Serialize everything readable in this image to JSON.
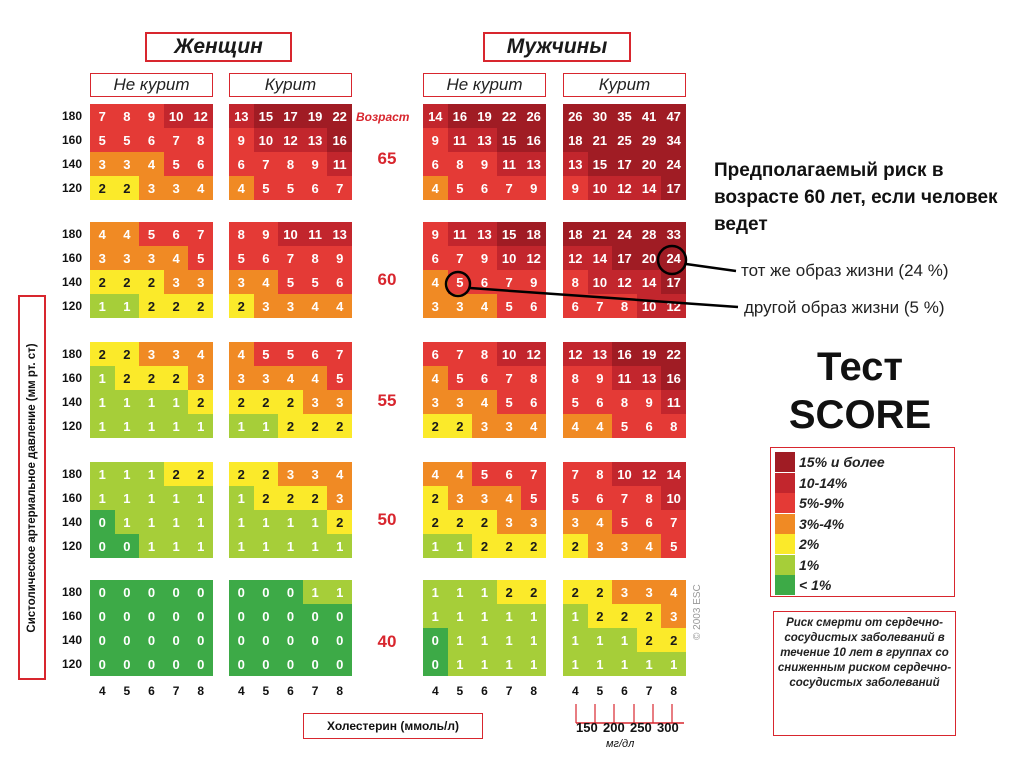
{
  "headers": {
    "women": "Женщин",
    "men": "Мужчины"
  },
  "subheaders": {
    "nonsmoker": "Не курит",
    "smoker": "Курит"
  },
  "age_header": "Возраст",
  "ages": [
    "65",
    "60",
    "55",
    "50",
    "40"
  ],
  "bp_labels": [
    "180",
    "160",
    "140",
    "120"
  ],
  "chol_labels": [
    "4",
    "5",
    "6",
    "7",
    "8"
  ],
  "y_axis_label": "Систолическое артериальное давление (мм рт. ст)",
  "x_axis_label": "Холестерин (ммоль/л)",
  "mgdl_ticks": [
    "150",
    "200",
    "250",
    "300"
  ],
  "mgdl_unit": "мг/дл",
  "copyright": "© 2003 ESC",
  "annotation": {
    "title": "Предполагаемый риск в возрасте 60 лет, если человек ведет",
    "same": "тот же образ жизни (24 %)",
    "other": "другой образ жизни (5 %)"
  },
  "score_title": {
    "line1": "Тест",
    "line2": "SCORE"
  },
  "legend": [
    {
      "label": "15% и более",
      "color": "#a01c24"
    },
    {
      "label": "10-14%",
      "color": "#c2262d"
    },
    {
      "label": "5%-9%",
      "color": "#e43a36"
    },
    {
      "label": "3%-4%",
      "color": "#f08a24"
    },
    {
      "label": "2%",
      "color": "#fbea2a"
    },
    {
      "label": "1%",
      "color": "#a6ce39"
    },
    {
      "label": "< 1%",
      "color": "#3daa47"
    }
  ],
  "note": "Риск смерти от сердечно-сосудистых заболеваний в течение 10 лет в группах со сниженным риском сердечно-сосудистых заболеваний",
  "chart_data": {
    "type": "table",
    "title": "SCORE",
    "row_label": "Систолическое артериальное давление (мм рт. ст)",
    "col_label": "Холестерин (ммоль/л)",
    "rows": [
      "180",
      "160",
      "140",
      "120"
    ],
    "cols": [
      "4",
      "5",
      "6",
      "7",
      "8"
    ],
    "groups": [
      {
        "sex": "Женщин",
        "smoking": "Не курит",
        "ages": {
          "65": [
            [
              7,
              8,
              9,
              10,
              12
            ],
            [
              5,
              5,
              6,
              7,
              8
            ],
            [
              3,
              3,
              4,
              5,
              6
            ],
            [
              2,
              2,
              3,
              3,
              4
            ]
          ],
          "60": [
            [
              4,
              4,
              5,
              6,
              7
            ],
            [
              3,
              3,
              3,
              4,
              5
            ],
            [
              2,
              2,
              2,
              3,
              3
            ],
            [
              1,
              1,
              2,
              2,
              2
            ]
          ],
          "55": [
            [
              2,
              2,
              3,
              3,
              4
            ],
            [
              1,
              2,
              2,
              2,
              3
            ],
            [
              1,
              1,
              1,
              1,
              2
            ],
            [
              1,
              1,
              1,
              1,
              1
            ]
          ],
          "50": [
            [
              1,
              1,
              1,
              2,
              2
            ],
            [
              1,
              1,
              1,
              1,
              1
            ],
            [
              0,
              1,
              1,
              1,
              1
            ],
            [
              0,
              0,
              1,
              1,
              1
            ]
          ],
          "40": [
            [
              0,
              0,
              0,
              0,
              0
            ],
            [
              0,
              0,
              0,
              0,
              0
            ],
            [
              0,
              0,
              0,
              0,
              0
            ],
            [
              0,
              0,
              0,
              0,
              0
            ]
          ]
        }
      },
      {
        "sex": "Женщин",
        "smoking": "Курит",
        "ages": {
          "65": [
            [
              13,
              15,
              17,
              19,
              22
            ],
            [
              9,
              10,
              12,
              13,
              16
            ],
            [
              6,
              7,
              8,
              9,
              11
            ],
            [
              4,
              5,
              5,
              6,
              7
            ]
          ],
          "60": [
            [
              8,
              9,
              10,
              11,
              13
            ],
            [
              5,
              6,
              7,
              8,
              9
            ],
            [
              3,
              4,
              5,
              5,
              6
            ],
            [
              2,
              3,
              3,
              4,
              4
            ]
          ],
          "55": [
            [
              4,
              5,
              5,
              6,
              7
            ],
            [
              3,
              3,
              4,
              4,
              5
            ],
            [
              2,
              2,
              2,
              3,
              3
            ],
            [
              1,
              1,
              2,
              2,
              2
            ]
          ],
          "50": [
            [
              2,
              2,
              3,
              3,
              4
            ],
            [
              1,
              2,
              2,
              2,
              3
            ],
            [
              1,
              1,
              1,
              1,
              2
            ],
            [
              1,
              1,
              1,
              1,
              1
            ]
          ],
          "40": [
            [
              0,
              0,
              0,
              1,
              1
            ],
            [
              0,
              0,
              0,
              0,
              0
            ],
            [
              0,
              0,
              0,
              0,
              0
            ],
            [
              0,
              0,
              0,
              0,
              0
            ]
          ]
        }
      },
      {
        "sex": "Мужчины",
        "smoking": "Не курит",
        "ages": {
          "65": [
            [
              14,
              16,
              19,
              22,
              26
            ],
            [
              9,
              11,
              13,
              15,
              16
            ],
            [
              6,
              8,
              9,
              11,
              13
            ],
            [
              4,
              5,
              6,
              7,
              9
            ]
          ],
          "60": [
            [
              9,
              11,
              13,
              15,
              18
            ],
            [
              6,
              7,
              9,
              10,
              12
            ],
            [
              4,
              5,
              6,
              7,
              9
            ],
            [
              3,
              3,
              4,
              5,
              6
            ]
          ],
          "55": [
            [
              6,
              7,
              8,
              10,
              12
            ],
            [
              4,
              5,
              6,
              7,
              8
            ],
            [
              3,
              3,
              4,
              5,
              6
            ],
            [
              2,
              2,
              3,
              3,
              4
            ]
          ],
          "50": [
            [
              4,
              4,
              5,
              6,
              7
            ],
            [
              2,
              3,
              3,
              4,
              5
            ],
            [
              2,
              2,
              2,
              3,
              3
            ],
            [
              1,
              1,
              2,
              2,
              2
            ]
          ],
          "40": [
            [
              1,
              1,
              1,
              2,
              2
            ],
            [
              1,
              1,
              1,
              1,
              1
            ],
            [
              0,
              1,
              1,
              1,
              1
            ],
            [
              0,
              1,
              1,
              1,
              1
            ]
          ]
        }
      },
      {
        "sex": "Мужчины",
        "smoking": "Курит",
        "ages": {
          "65": [
            [
              26,
              30,
              35,
              41,
              47
            ],
            [
              18,
              21,
              25,
              29,
              34
            ],
            [
              13,
              15,
              17,
              20,
              24
            ],
            [
              9,
              10,
              12,
              14,
              17
            ]
          ],
          "60": [
            [
              18,
              21,
              24,
              28,
              33
            ],
            [
              12,
              14,
              17,
              20,
              24
            ],
            [
              8,
              10,
              12,
              14,
              17
            ],
            [
              6,
              7,
              8,
              10,
              12
            ]
          ],
          "55": [
            [
              12,
              13,
              16,
              19,
              22
            ],
            [
              8,
              9,
              11,
              13,
              16
            ],
            [
              5,
              6,
              8,
              9,
              11
            ],
            [
              4,
              4,
              5,
              6,
              8
            ]
          ],
          "50": [
            [
              7,
              8,
              10,
              12,
              14
            ],
            [
              5,
              6,
              7,
              8,
              10
            ],
            [
              3,
              4,
              5,
              6,
              7
            ],
            [
              2,
              3,
              3,
              4,
              5
            ]
          ],
          "40": [
            [
              2,
              2,
              3,
              3,
              4
            ],
            [
              1,
              2,
              2,
              2,
              3
            ],
            [
              1,
              1,
              1,
              2,
              2
            ],
            [
              1,
              1,
              1,
              1,
              1
            ]
          ]
        }
      }
    ]
  }
}
